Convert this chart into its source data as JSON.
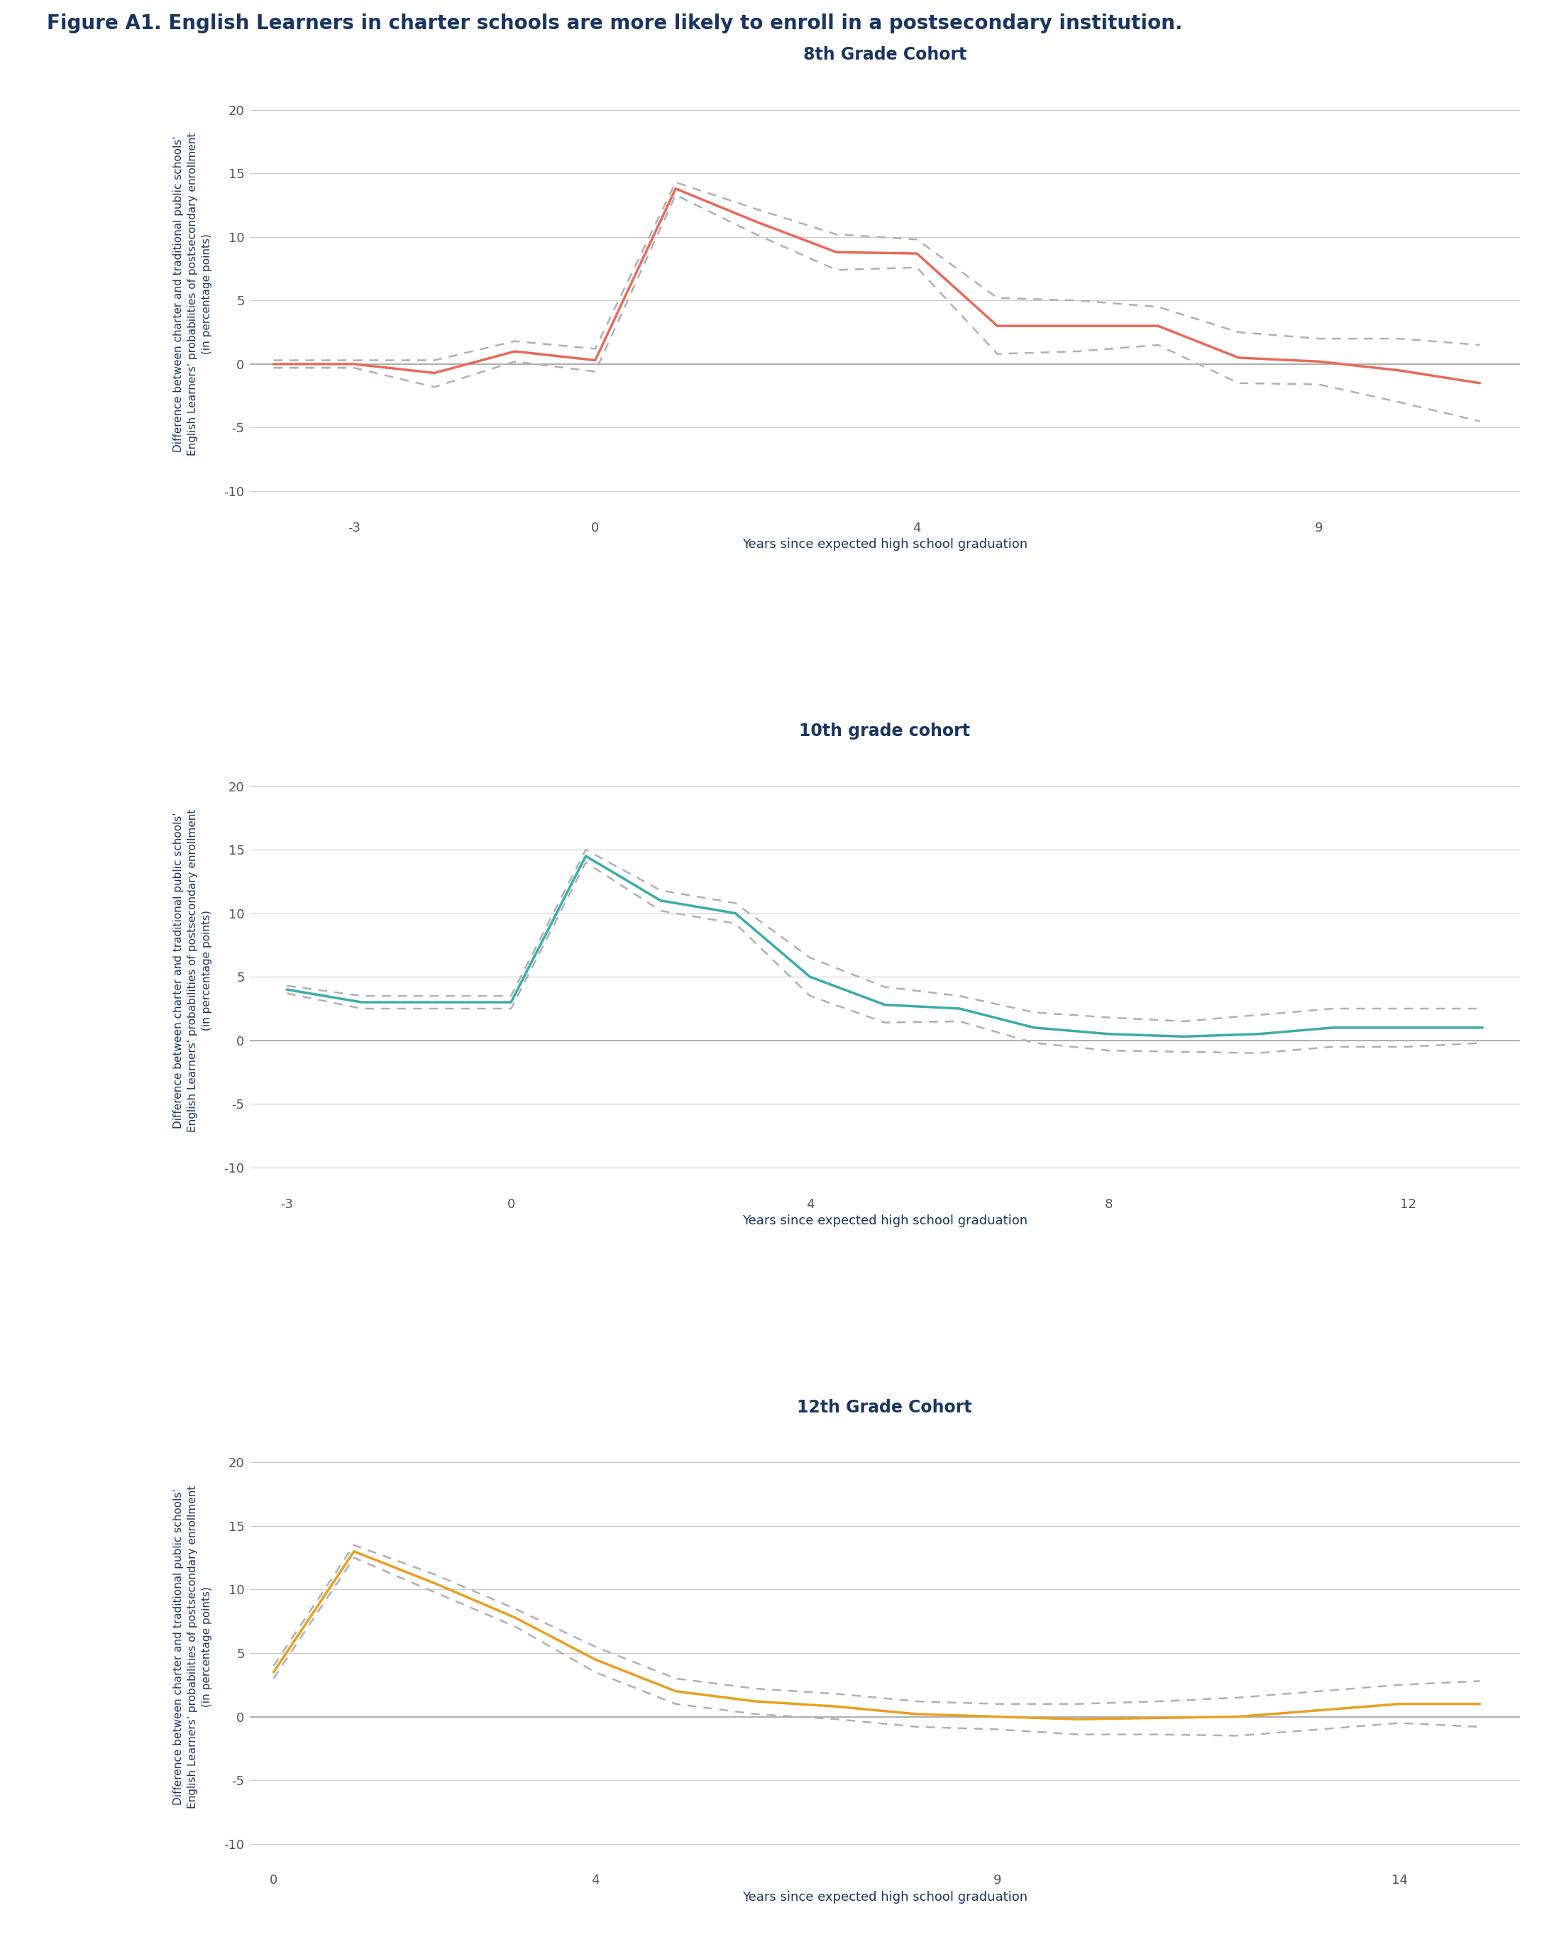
{
  "figure_title": "Figure A1. English Learners in charter schools are more likely to enroll in a postsecondary institution.",
  "figure_title_color": "#1a3560",
  "figure_title_fontsize": 20,
  "background_color": "#ffffff",
  "subplot_title_color": "#1a3560",
  "subplot_title_fontsize": 17,
  "axis_label_color": "#1a3560",
  "xlabel_fontsize": 13,
  "ylabel_fontsize": 11,
  "tick_label_color": "#555555",
  "tick_label_fontsize": 13,
  "xlabel": "Years since expected high school graduation",
  "ylabel_line1": "Difference between charter and traditional public schools'",
  "ylabel_line2": "English Learners' probabilities of postsecondary enrollment",
  "ylabel_line3": "(in percentage points)",
  "grid_color": "#cccccc",
  "zero_line_color": "#aaaaaa",
  "ci_color": "#b0b0b0",
  "plots": [
    {
      "title": "8th Grade Cohort",
      "line_color": "#e8695a",
      "x": [
        -4,
        -3,
        -2,
        -1,
        0,
        1,
        2,
        3,
        4,
        5,
        6,
        7,
        8,
        9,
        10,
        11
      ],
      "y": [
        0.0,
        0.0,
        -0.7,
        1.0,
        0.3,
        13.8,
        11.2,
        8.8,
        8.7,
        3.0,
        3.0,
        3.0,
        0.5,
        0.2,
        -0.5,
        -1.5
      ],
      "ci_upper": [
        0.3,
        0.3,
        0.3,
        1.8,
        1.2,
        14.3,
        12.2,
        10.2,
        9.8,
        5.2,
        5.0,
        4.5,
        2.5,
        2.0,
        2.0,
        1.5
      ],
      "ci_lower": [
        -0.3,
        -0.3,
        -1.8,
        0.2,
        -0.6,
        13.3,
        10.2,
        7.4,
        7.6,
        0.8,
        1.0,
        1.5,
        -1.5,
        -1.6,
        -3.0,
        -4.5
      ],
      "xticks": [
        -3,
        0,
        4,
        9
      ],
      "xlim": [
        -4.3,
        11.5
      ],
      "ylim": [
        -12,
        23
      ],
      "yticks": [
        -10,
        -5,
        0,
        5,
        10,
        15,
        20
      ]
    },
    {
      "title": "10th grade cohort",
      "line_color": "#3aacaa",
      "x": [
        -3,
        -2,
        -1,
        0,
        1,
        2,
        3,
        4,
        5,
        6,
        7,
        8,
        9,
        10,
        11,
        12,
        13
      ],
      "y": [
        4.0,
        3.0,
        3.0,
        3.0,
        14.5,
        11.0,
        10.0,
        5.0,
        2.8,
        2.5,
        1.0,
        0.5,
        0.3,
        0.5,
        1.0,
        1.0,
        1.0
      ],
      "ci_upper": [
        4.3,
        3.5,
        3.5,
        3.5,
        15.0,
        11.8,
        10.8,
        6.5,
        4.2,
        3.5,
        2.2,
        1.8,
        1.5,
        2.0,
        2.5,
        2.5,
        2.5
      ],
      "ci_lower": [
        3.7,
        2.5,
        2.5,
        2.5,
        14.0,
        10.2,
        9.2,
        3.5,
        1.4,
        1.5,
        -0.2,
        -0.8,
        -0.9,
        -1.0,
        -0.5,
        -0.5,
        -0.2
      ],
      "xticks": [
        -3,
        0,
        4,
        8,
        12
      ],
      "xlim": [
        -3.5,
        13.5
      ],
      "ylim": [
        -12,
        23
      ],
      "yticks": [
        -10,
        -5,
        0,
        5,
        10,
        15,
        20
      ]
    },
    {
      "title": "12th Grade Cohort",
      "line_color": "#e8a020",
      "x": [
        0,
        1,
        2,
        3,
        4,
        5,
        6,
        7,
        8,
        9,
        10,
        11,
        12,
        13,
        14,
        15
      ],
      "y": [
        3.5,
        13.0,
        10.5,
        7.8,
        4.5,
        2.0,
        1.2,
        0.8,
        0.2,
        0.0,
        -0.2,
        -0.1,
        0.0,
        0.5,
        1.0,
        1.0
      ],
      "ci_upper": [
        4.0,
        13.5,
        11.2,
        8.5,
        5.5,
        3.0,
        2.2,
        1.8,
        1.2,
        1.0,
        1.0,
        1.2,
        1.5,
        2.0,
        2.5,
        2.8
      ],
      "ci_lower": [
        3.0,
        12.5,
        9.8,
        7.1,
        3.5,
        1.0,
        0.2,
        -0.2,
        -0.8,
        -1.0,
        -1.4,
        -1.4,
        -1.5,
        -1.0,
        -0.5,
        -0.8
      ],
      "xticks": [
        0,
        4,
        9,
        14
      ],
      "xlim": [
        -0.3,
        15.5
      ],
      "ylim": [
        -12,
        23
      ],
      "yticks": [
        -10,
        -5,
        0,
        5,
        10,
        15,
        20
      ]
    }
  ]
}
